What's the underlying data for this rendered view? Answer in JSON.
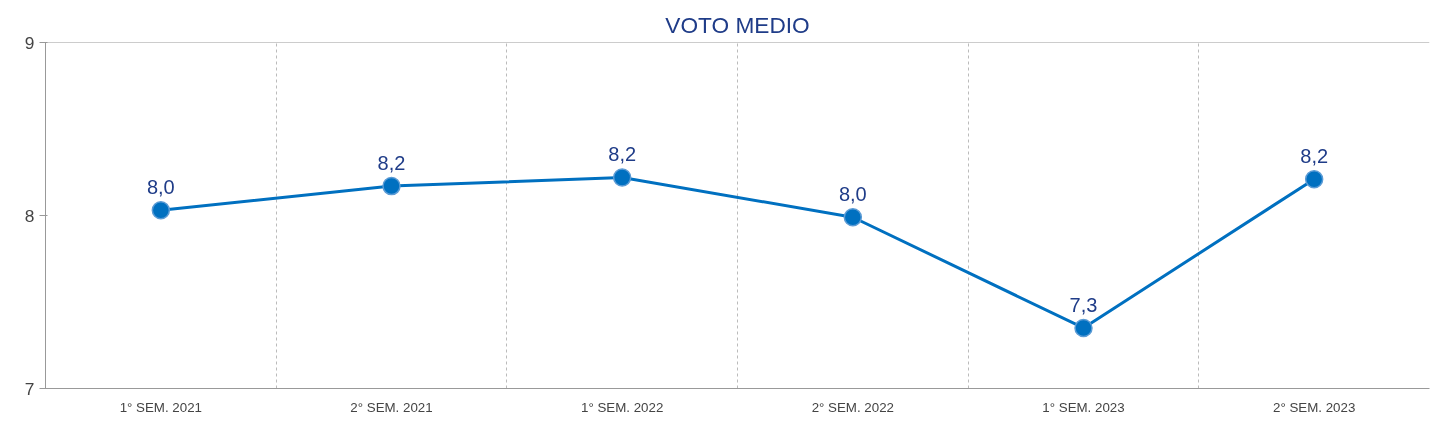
{
  "chart_data": {
    "type": "line",
    "title": "VOTO MEDIO",
    "categories": [
      "1° SEM. 2021",
      "2° SEM. 2021",
      "1° SEM. 2022",
      "2° SEM. 2022",
      "1° SEM. 2023",
      "2° SEM. 2023"
    ],
    "series": [
      {
        "color": "#0070c0",
        "values": [
          8.03,
          8.17,
          8.22,
          7.99,
          7.35,
          8.21
        ],
        "value_labels": [
          "8,0",
          "8,2",
          "8,2",
          "8,0",
          "7,3",
          "8,2"
        ]
      }
    ],
    "ylim": [
      7,
      9
    ],
    "yticks": [
      7,
      8,
      9
    ],
    "grid": "x",
    "marker": "circle",
    "line_style": "solid"
  }
}
